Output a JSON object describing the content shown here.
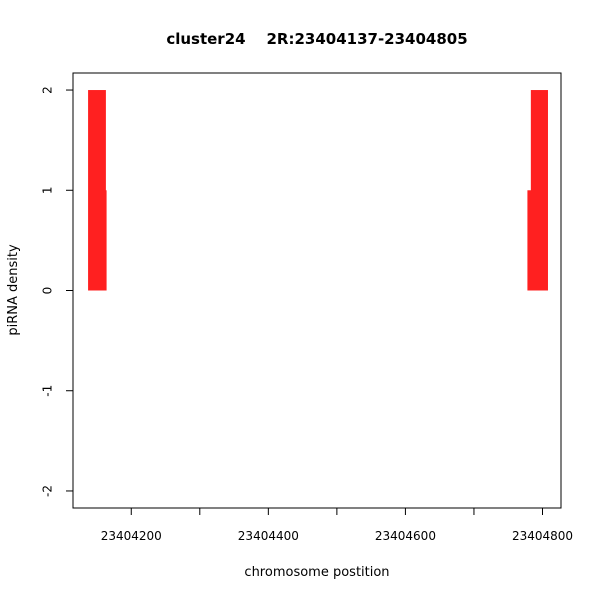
{
  "chart_data": {
    "type": "bar",
    "title": "cluster24    2R:23404137-23404805",
    "xlabel": "chromosome postition",
    "ylabel": "piRNA density",
    "xlim": [
      23404115,
      23404827
    ],
    "ylim": [
      -2.17,
      2.17
    ],
    "xticks": [
      23404200,
      23404300,
      23404400,
      23404500,
      23404600,
      23404700,
      23404800
    ],
    "xtick_labels": [
      "23404200",
      "",
      "23404400",
      "",
      "23404600",
      "",
      "23404800"
    ],
    "yticks": [
      -2,
      -1,
      0,
      1,
      2
    ],
    "ytick_labels": [
      "-2",
      "-1",
      "0",
      "1",
      "2"
    ],
    "series": [
      {
        "color": "#ff2020",
        "bars": [
          {
            "x0": 23404137,
            "x1": 23404163,
            "y": 2
          },
          {
            "x0": 23404138,
            "x1": 23404164,
            "y": 1
          },
          {
            "x0": 23404783,
            "x1": 23404808,
            "y": 2
          },
          {
            "x0": 23404778,
            "x1": 23404805,
            "y": 1
          }
        ]
      }
    ],
    "grid": false
  }
}
